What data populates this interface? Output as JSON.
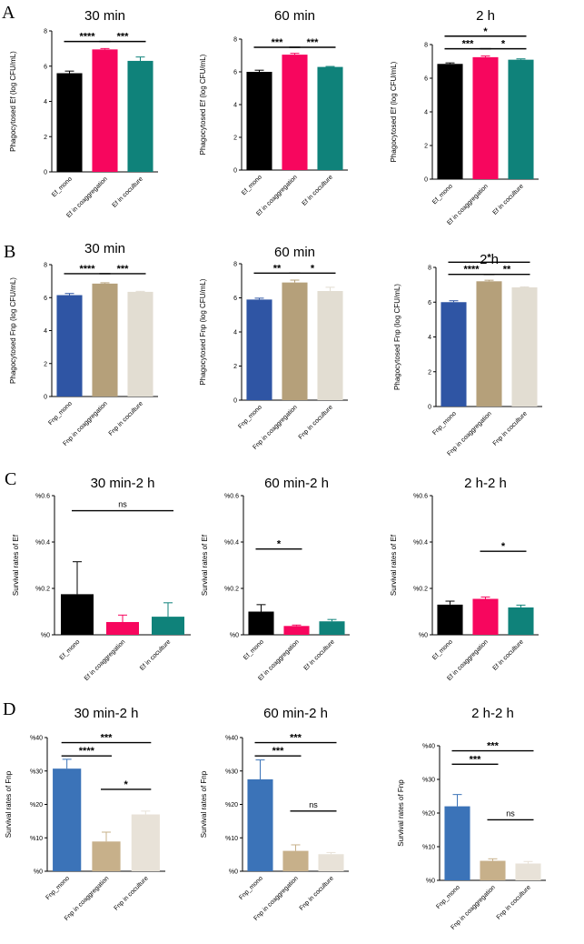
{
  "colors": {
    "ef_mono": "#000000",
    "ef_coagg": "#f7065e",
    "ef_cocult": "#0f827a",
    "fnp_mono": "#2f55a4",
    "fnp_coagg": "#b5a07a",
    "fnp_cocult": "#e2ddd2",
    "fnp_mono_D": "#3b73b8",
    "fnp_coagg_D": "#c7b08a",
    "fnp_cocult_D": "#e8e2d8"
  },
  "panel_labels": [
    "A",
    "B",
    "C",
    "D"
  ],
  "chart_data": [
    {
      "id": "A1",
      "panel": "A",
      "type": "bar",
      "title": "30 min",
      "ylabel": "Phagocytosed Ef (log CFU/mL)",
      "ylim": [
        0,
        8
      ],
      "yticks": [
        "0",
        "2",
        "4",
        "6",
        "8"
      ],
      "categories": [
        "Ef_mono",
        "Ef in coaggregation",
        "Ef in coculture"
      ],
      "values": [
        5.6,
        6.95,
        6.3
      ],
      "errors": [
        0.12,
        0.05,
        0.22
      ],
      "color_keys": [
        "ef_mono",
        "ef_coagg",
        "ef_cocult"
      ],
      "significance": [
        {
          "from": 0,
          "to": 1,
          "label": "****",
          "level": 7.4
        },
        {
          "from": 1,
          "to": 2,
          "label": "***",
          "level": 7.4
        }
      ]
    },
    {
      "id": "A2",
      "panel": "A",
      "type": "bar",
      "title": "60 min",
      "ylabel": "Phagocytosed Ef (log CFU/mL)",
      "ylim": [
        0,
        8
      ],
      "yticks": [
        "0",
        "2",
        "4",
        "6",
        "8"
      ],
      "categories": [
        "Ef_mono",
        "Ef in coaggregation",
        "Ef in coculture"
      ],
      "values": [
        6.0,
        7.05,
        6.3
      ],
      "errors": [
        0.1,
        0.08,
        0.03
      ],
      "color_keys": [
        "ef_mono",
        "ef_coagg",
        "ef_cocult"
      ],
      "significance": [
        {
          "from": 0,
          "to": 1,
          "label": "***",
          "level": 7.5
        },
        {
          "from": 1,
          "to": 2,
          "label": "***",
          "level": 7.5
        }
      ]
    },
    {
      "id": "A3",
      "panel": "A",
      "type": "bar",
      "title": "2 h",
      "ylabel": "Phagocytosed Ef (log CFU/mL)",
      "ylim": [
        0,
        8
      ],
      "yticks": [
        "0",
        "2",
        "4",
        "6",
        "8"
      ],
      "categories": [
        "Ef_mono",
        "Ef in coaggregation",
        "Ef in coculture"
      ],
      "values": [
        6.85,
        7.25,
        7.1
      ],
      "errors": [
        0.06,
        0.07,
        0.05
      ],
      "color_keys": [
        "ef_mono",
        "ef_coagg",
        "ef_cocult"
      ],
      "significance": [
        {
          "from": 0,
          "to": 1,
          "label": "***",
          "level": 7.75
        },
        {
          "from": 1,
          "to": 2,
          "label": "*",
          "level": 7.75
        },
        {
          "from": 0,
          "to": 2,
          "label": "*",
          "level": 8.5
        }
      ]
    },
    {
      "id": "B1",
      "panel": "B",
      "type": "bar",
      "title": "30 min",
      "ylabel": "Phagocytosed Fnp (log CFU/mL)",
      "ylim": [
        0,
        8
      ],
      "yticks": [
        "0",
        "2",
        "4",
        "6",
        "8"
      ],
      "categories": [
        "Fnp_mono",
        "Fnp in coaggregation",
        "Fnp in coculture"
      ],
      "values": [
        6.15,
        6.85,
        6.35
      ],
      "errors": [
        0.1,
        0.05,
        0.03
      ],
      "color_keys": [
        "fnp_mono",
        "fnp_coagg",
        "fnp_cocult"
      ],
      "significance": [
        {
          "from": 0,
          "to": 1,
          "label": "****",
          "level": 7.45
        },
        {
          "from": 1,
          "to": 2,
          "label": "***",
          "level": 7.45
        }
      ]
    },
    {
      "id": "B2",
      "panel": "B",
      "type": "bar",
      "title": "60 min",
      "ylabel": "Phagocytosed Fnp (log CFU/mL)",
      "ylim": [
        0,
        8
      ],
      "yticks": [
        "0",
        "2",
        "4",
        "6",
        "8"
      ],
      "categories": [
        "Fnp_mono",
        "Fnp in coaggregation",
        "Fnp in coculture"
      ],
      "values": [
        5.9,
        6.9,
        6.4
      ],
      "errors": [
        0.08,
        0.14,
        0.22
      ],
      "color_keys": [
        "fnp_mono",
        "fnp_coagg",
        "fnp_cocult"
      ],
      "significance": [
        {
          "from": 0,
          "to": 1,
          "label": "**",
          "level": 7.45
        },
        {
          "from": 1,
          "to": 2,
          "label": "*",
          "level": 7.45
        }
      ]
    },
    {
      "id": "B3",
      "panel": "B",
      "type": "bar",
      "title": "2 h",
      "ylabel": "Phagocytosed Fnp (log CFU/mL)",
      "ylim": [
        0,
        8
      ],
      "yticks": [
        "0",
        "2",
        "4",
        "6",
        "8"
      ],
      "categories": [
        "Fnp_mono",
        "Fnp in coaggregation",
        "Fnp in coculture"
      ],
      "values": [
        6.0,
        7.2,
        6.85
      ],
      "errors": [
        0.08,
        0.06,
        0.03
      ],
      "color_keys": [
        "fnp_mono",
        "fnp_coagg",
        "fnp_cocult"
      ],
      "significance": [
        {
          "from": 0,
          "to": 1,
          "label": "****",
          "level": 7.6
        },
        {
          "from": 1,
          "to": 2,
          "label": "**",
          "level": 7.6
        },
        {
          "from": 0,
          "to": 2,
          "label": "*",
          "level": 8.3
        }
      ]
    },
    {
      "id": "C1",
      "panel": "C",
      "type": "bar",
      "title": "30 min-2 h",
      "ylabel": "Survival rates of Ef",
      "ylim": [
        0,
        0.6
      ],
      "yticks": [
        "%0",
        "%0.2",
        "%0.4",
        "%0.6"
      ],
      "categories": [
        "Ef_mono",
        "Ef in coaggregation",
        "Ef in coculture"
      ],
      "values": [
        0.175,
        0.055,
        0.078
      ],
      "errors": [
        0.14,
        0.03,
        0.06
      ],
      "color_keys": [
        "ef_mono",
        "ef_coagg",
        "ef_cocult"
      ],
      "significance": [
        {
          "from": 0,
          "to": 2,
          "label": "ns",
          "level": 0.535
        }
      ]
    },
    {
      "id": "C2",
      "panel": "C",
      "type": "bar",
      "title": "60 min-2 h",
      "ylabel": "Survival rates of Ef",
      "ylim": [
        0,
        0.6
      ],
      "yticks": [
        "%0",
        "%0.2",
        "%0.4",
        "%0.6"
      ],
      "categories": [
        "Ef_mono",
        "Ef in coaggregation",
        "Ef in coculture"
      ],
      "values": [
        0.1,
        0.038,
        0.058
      ],
      "errors": [
        0.03,
        0.004,
        0.008
      ],
      "color_keys": [
        "ef_mono",
        "ef_coagg",
        "ef_cocult"
      ],
      "significance": [
        {
          "from": 0,
          "to": 1,
          "label": "*",
          "level": 0.37
        }
      ]
    },
    {
      "id": "C3",
      "panel": "C",
      "type": "bar",
      "title": "2 h-2 h",
      "ylabel": "Survival rates of Ef",
      "ylim": [
        0,
        0.6
      ],
      "yticks": [
        "%0",
        "%0.2",
        "%0.4",
        "%0.6"
      ],
      "categories": [
        "Ef_mono",
        "Ef in coaggregation",
        "Ef in coculture"
      ],
      "values": [
        0.13,
        0.155,
        0.118
      ],
      "errors": [
        0.015,
        0.008,
        0.01
      ],
      "color_keys": [
        "ef_mono",
        "ef_coagg",
        "ef_cocult"
      ],
      "significance": [
        {
          "from": 1,
          "to": 2,
          "label": "*",
          "level": 0.36
        }
      ]
    },
    {
      "id": "D1",
      "panel": "D",
      "type": "bar",
      "title": "30 min-2 h",
      "ylabel": "Survival rates of Fnp",
      "ylim": [
        0,
        0.4
      ],
      "yticks": [
        "%0",
        "%10",
        "%20",
        "%30",
        "%40"
      ],
      "categories": [
        "Fnp_mono",
        "Fnp in coaggregation",
        "Fnp in coculture"
      ],
      "values": [
        0.307,
        0.089,
        0.17
      ],
      "errors": [
        0.028,
        0.028,
        0.01
      ],
      "color_keys": [
        "fnp_mono_D",
        "fnp_coagg_D",
        "fnp_cocult_D"
      ],
      "significance": [
        {
          "from": 0,
          "to": 1,
          "label": "****",
          "level": 0.345
        },
        {
          "from": 0,
          "to": 2,
          "label": "***",
          "level": 0.385
        },
        {
          "from": 1,
          "to": 2,
          "label": "*",
          "level": 0.245
        }
      ]
    },
    {
      "id": "D2",
      "panel": "D",
      "type": "bar",
      "title": "60 min-2 h",
      "ylabel": "Survival rates of Fnp",
      "ylim": [
        0,
        0.4
      ],
      "yticks": [
        "%0",
        "%10",
        "%20",
        "%30",
        "%40"
      ],
      "categories": [
        "Fnp_mono",
        "Fnp in coaggregation",
        "Fnp in coculture"
      ],
      "values": [
        0.275,
        0.061,
        0.051
      ],
      "errors": [
        0.058,
        0.018,
        0.005
      ],
      "color_keys": [
        "fnp_mono_D",
        "fnp_coagg_D",
        "fnp_cocult_D"
      ],
      "significance": [
        {
          "from": 0,
          "to": 1,
          "label": "***",
          "level": 0.345
        },
        {
          "from": 0,
          "to": 2,
          "label": "***",
          "level": 0.385
        },
        {
          "from": 1,
          "to": 2,
          "label": "ns",
          "level": 0.18
        }
      ]
    },
    {
      "id": "D3",
      "panel": "D",
      "type": "bar",
      "title": "2 h-2 h",
      "ylabel": "Survival rates of Fnp",
      "ylim": [
        0,
        0.4
      ],
      "yticks": [
        "%0",
        "%10",
        "%20",
        "%30",
        "%40"
      ],
      "categories": [
        "Fnp_mono",
        "Fnp in coaggregation",
        "Fnp in coculture"
      ],
      "values": [
        0.22,
        0.058,
        0.05
      ],
      "errors": [
        0.035,
        0.006,
        0.006
      ],
      "color_keys": [
        "fnp_mono_D",
        "fnp_coagg_D",
        "fnp_cocult_D"
      ],
      "significance": [
        {
          "from": 0,
          "to": 1,
          "label": "***",
          "level": 0.345
        },
        {
          "from": 0,
          "to": 2,
          "label": "***",
          "level": 0.385
        },
        {
          "from": 1,
          "to": 2,
          "label": "ns",
          "level": 0.18
        }
      ]
    }
  ]
}
